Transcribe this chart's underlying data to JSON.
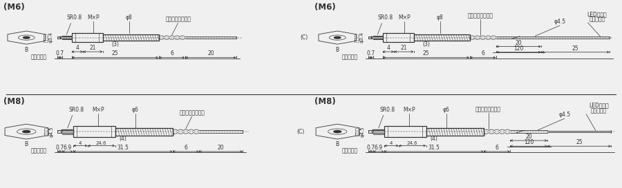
{
  "bg_color": "#f0f0f0",
  "line_color": "#333333",
  "panels": [
    {
      "title": "(M6)",
      "type": "m6",
      "has_led": false,
      "col": 0,
      "row": 0
    },
    {
      "title": "(M6)",
      "type": "m6",
      "has_led": true,
      "col": 1,
      "row": 0
    },
    {
      "title": "(M8)",
      "type": "m8",
      "has_led": false,
      "col": 0,
      "row": 1
    },
    {
      "title": "(M8)",
      "type": "m8",
      "has_led": true,
      "col": 1,
      "row": 1
    }
  ],
  "m6": {
    "tip_r": 0.012,
    "hex_r": 0.045,
    "barrel_r": 0.03,
    "cp_r": 0.022,
    "cable_r": 0.012,
    "phi_label": "φ3.4",
    "phi_barrel": "φ8",
    "flat_label": "平面部",
    "sr_label": "SR0.8",
    "mxp_label": "M×P",
    "dim_stroke": "0.7",
    "dim_25": "25",
    "dim_6": "6",
    "dim_20": "20",
    "dim_4": "4",
    "dim_21": "21",
    "dim_3": "(3)",
    "dim_69": "",
    "cp_label": "コードプロテクタ"
  },
  "m8": {
    "tip_r": 0.015,
    "hex_r": 0.055,
    "barrel_r": 0.038,
    "cp_r": 0.025,
    "cable_r": 0.012,
    "phi_label": "φ4.5",
    "phi_barrel": "φ6",
    "flat_label": "平面部",
    "sr_label": "SR0.8",
    "mxp_label": "M×P",
    "dim_stroke": "0.7",
    "dim_315": "31.5",
    "dim_6": "6",
    "dim_20": "20",
    "dim_4": "4",
    "dim_246": "24.6",
    "dim_4p": "(4)",
    "dim_69": "6.9",
    "cp_label": "コードプロテクタ"
  }
}
